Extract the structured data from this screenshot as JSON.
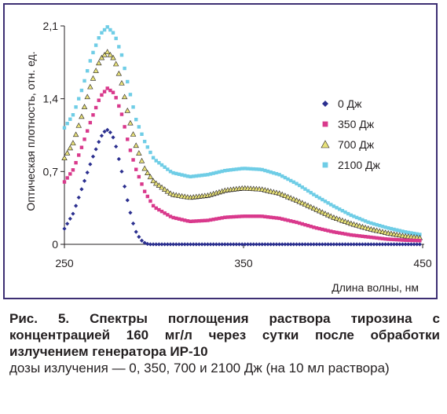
{
  "chart_data": {
    "type": "scatter",
    "xlabel": "Длина волны, нм",
    "ylabel": "Оптическая плотность, отн. ед.",
    "xlim": [
      250,
      450
    ],
    "ylim": [
      0,
      2.1
    ],
    "x_ticks": [
      "250",
      "350",
      "450"
    ],
    "y_ticks": [
      "0",
      "0,7",
      "1,4",
      "2,1"
    ],
    "legend_position": "right",
    "grid": false,
    "series": [
      {
        "name": "0 Дж",
        "color": "#2b2f8f",
        "marker": "diamond",
        "points": [
          [
            250,
            0.15
          ],
          [
            255,
            0.3
          ],
          [
            260,
            0.55
          ],
          [
            265,
            0.8
          ],
          [
            270,
            1.02
          ],
          [
            272,
            1.08
          ],
          [
            274,
            1.1
          ],
          [
            276,
            1.07
          ],
          [
            278,
            1.0
          ],
          [
            280,
            0.85
          ],
          [
            282,
            0.7
          ],
          [
            284,
            0.52
          ],
          [
            286,
            0.36
          ],
          [
            288,
            0.22
          ],
          [
            290,
            0.12
          ],
          [
            292,
            0.06
          ],
          [
            294,
            0.02
          ],
          [
            297,
            0.0
          ],
          [
            320,
            0.0
          ],
          [
            350,
            0.0
          ],
          [
            400,
            0.0
          ],
          [
            450,
            0.0
          ]
        ]
      },
      {
        "name": "350 Дж",
        "color": "#d9398c",
        "marker": "square",
        "points": [
          [
            250,
            0.6
          ],
          [
            255,
            0.72
          ],
          [
            260,
            0.95
          ],
          [
            265,
            1.2
          ],
          [
            270,
            1.42
          ],
          [
            274,
            1.5
          ],
          [
            278,
            1.45
          ],
          [
            282,
            1.25
          ],
          [
            286,
            0.95
          ],
          [
            290,
            0.72
          ],
          [
            295,
            0.5
          ],
          [
            300,
            0.36
          ],
          [
            310,
            0.26
          ],
          [
            320,
            0.22
          ],
          [
            330,
            0.23
          ],
          [
            340,
            0.26
          ],
          [
            350,
            0.27
          ],
          [
            360,
            0.27
          ],
          [
            370,
            0.25
          ],
          [
            380,
            0.21
          ],
          [
            390,
            0.16
          ],
          [
            400,
            0.12
          ],
          [
            410,
            0.09
          ],
          [
            420,
            0.07
          ],
          [
            430,
            0.05
          ],
          [
            440,
            0.04
          ],
          [
            450,
            0.035
          ]
        ]
      },
      {
        "name": "700 Дж",
        "color": "#a69b2d",
        "marker": "triangle",
        "points": [
          [
            250,
            0.83
          ],
          [
            255,
            0.98
          ],
          [
            260,
            1.25
          ],
          [
            265,
            1.55
          ],
          [
            270,
            1.78
          ],
          [
            274,
            1.85
          ],
          [
            278,
            1.78
          ],
          [
            282,
            1.55
          ],
          [
            286,
            1.22
          ],
          [
            290,
            0.95
          ],
          [
            295,
            0.72
          ],
          [
            300,
            0.6
          ],
          [
            310,
            0.48
          ],
          [
            320,
            0.45
          ],
          [
            330,
            0.47
          ],
          [
            340,
            0.52
          ],
          [
            350,
            0.54
          ],
          [
            360,
            0.53
          ],
          [
            370,
            0.49
          ],
          [
            380,
            0.42
          ],
          [
            390,
            0.34
          ],
          [
            400,
            0.26
          ],
          [
            410,
            0.2
          ],
          [
            420,
            0.15
          ],
          [
            430,
            0.11
          ],
          [
            440,
            0.08
          ],
          [
            450,
            0.06
          ]
        ]
      },
      {
        "name": "2100 Дж",
        "color": "#6fcde6",
        "marker": "square",
        "points": [
          [
            250,
            1.12
          ],
          [
            255,
            1.25
          ],
          [
            260,
            1.5
          ],
          [
            265,
            1.8
          ],
          [
            270,
            2.02
          ],
          [
            274,
            2.09
          ],
          [
            278,
            2.02
          ],
          [
            282,
            1.82
          ],
          [
            286,
            1.5
          ],
          [
            290,
            1.2
          ],
          [
            295,
            0.98
          ],
          [
            300,
            0.82
          ],
          [
            310,
            0.69
          ],
          [
            320,
            0.65
          ],
          [
            330,
            0.67
          ],
          [
            340,
            0.71
          ],
          [
            350,
            0.73
          ],
          [
            360,
            0.72
          ],
          [
            370,
            0.67
          ],
          [
            380,
            0.58
          ],
          [
            390,
            0.47
          ],
          [
            400,
            0.37
          ],
          [
            410,
            0.28
          ],
          [
            420,
            0.21
          ],
          [
            430,
            0.16
          ],
          [
            440,
            0.12
          ],
          [
            450,
            0.09
          ]
        ]
      }
    ]
  },
  "caption": {
    "bold": "Рис. 5. Спектры поглощения раствора тирозина с концентрацией 160 мг/л через сутки после обработки излучением генератора ИР-10",
    "normal": "дозы излучения — 0, 350, 700 и 2100 Дж (на 10 мл раствора)"
  }
}
